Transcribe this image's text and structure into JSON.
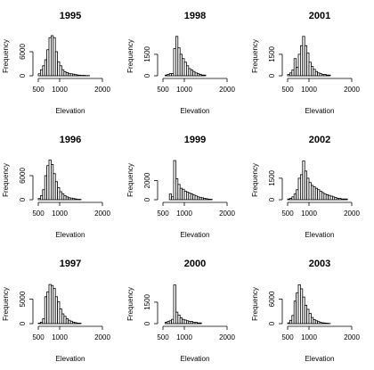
{
  "chart_data": [
    {
      "type": "histogram",
      "title": "1995",
      "xlabel": "Elevation",
      "ylabel": "Frequency",
      "xlim": [
        500,
        2000
      ],
      "ylim": [
        0,
        10000
      ],
      "x_ticks": [
        "500",
        "1000",
        "2000"
      ],
      "y_ticks": [
        "0",
        "6000"
      ],
      "y_tick_values": [
        0,
        6000
      ],
      "bin_start": 500,
      "bin_width": 50,
      "values": [
        500,
        1500,
        2500,
        4000,
        6500,
        9500,
        10000,
        9500,
        6000,
        3500,
        2500,
        1500,
        1000,
        800,
        600,
        500,
        400,
        300,
        200,
        150,
        100,
        100,
        50,
        50
      ]
    },
    {
      "type": "histogram",
      "title": "1998",
      "xlabel": "Elevation",
      "ylabel": "Frequency",
      "xlim": [
        500,
        2000
      ],
      "ylim": [
        0,
        2800
      ],
      "x_ticks": [
        "500",
        "1000",
        "2000"
      ],
      "y_ticks": [
        "0",
        "1500"
      ],
      "y_tick_values": [
        0,
        1500
      ],
      "bin_start": 500,
      "bin_width": 50,
      "values": [
        0,
        50,
        100,
        150,
        150,
        1900,
        2750,
        1950,
        1500,
        1200,
        950,
        700,
        500,
        400,
        300,
        200,
        150,
        100,
        50,
        50
      ]
    },
    {
      "type": "histogram",
      "title": "2001",
      "xlabel": "Elevation",
      "ylabel": "Frequency",
      "xlim": [
        500,
        2000
      ],
      "ylim": [
        0,
        2800
      ],
      "x_ticks": [
        "500",
        "1000",
        "2000"
      ],
      "y_ticks": [
        "0",
        "1500"
      ],
      "y_tick_values": [
        0,
        1500
      ],
      "bin_start": 500,
      "bin_width": 50,
      "values": [
        100,
        200,
        400,
        1200,
        600,
        1500,
        2100,
        2750,
        2100,
        1600,
        950,
        650,
        450,
        300,
        200,
        150,
        100,
        100,
        50,
        50
      ]
    },
    {
      "type": "histogram",
      "title": "1996",
      "xlabel": "Elevation",
      "ylabel": "Frequency",
      "xlim": [
        500,
        2000
      ],
      "ylim": [
        0,
        10000
      ],
      "x_ticks": [
        "500",
        "1000",
        "2000"
      ],
      "y_ticks": [
        "0",
        "6000"
      ],
      "y_tick_values": [
        0,
        6000
      ],
      "bin_start": 500,
      "bin_width": 50,
      "values": [
        300,
        1000,
        2500,
        6000,
        8500,
        9900,
        8800,
        6500,
        4500,
        3000,
        2000,
        1500,
        1000,
        700,
        500,
        400,
        300,
        200,
        100,
        100
      ]
    },
    {
      "type": "histogram",
      "title": "1999",
      "xlabel": "Elevation",
      "ylabel": "Frequency",
      "xlim": [
        500,
        2000
      ],
      "ylim": [
        0,
        4200
      ],
      "x_ticks": [
        "500",
        "1000",
        "2000"
      ],
      "y_ticks": [
        "0",
        "2000"
      ],
      "y_tick_values": [
        0,
        2000
      ],
      "bin_start": 500,
      "bin_width": 50,
      "values": [
        0,
        0,
        0,
        600,
        300,
        4100,
        2200,
        1600,
        1200,
        1100,
        900,
        800,
        700,
        600,
        500,
        400,
        300,
        250,
        200,
        150,
        100,
        50,
        50
      ]
    },
    {
      "type": "histogram",
      "title": "2002",
      "xlabel": "Elevation",
      "ylabel": "Frequency",
      "xlim": [
        500,
        2000
      ],
      "ylim": [
        0,
        2800
      ],
      "x_ticks": [
        "500",
        "1000",
        "2000"
      ],
      "y_ticks": [
        "0",
        "1500"
      ],
      "y_tick_values": [
        0,
        1500
      ],
      "bin_start": 500,
      "bin_width": 50,
      "values": [
        50,
        100,
        200,
        400,
        700,
        1500,
        1750,
        2700,
        2000,
        1500,
        1200,
        1000,
        900,
        800,
        700,
        600,
        500,
        400,
        350,
        300,
        250,
        200,
        150,
        100,
        100,
        50,
        50,
        50
      ]
    },
    {
      "type": "histogram",
      "title": "1997",
      "xlabel": "Elevation",
      "ylabel": "Frequency",
      "xlim": [
        500,
        2000
      ],
      "ylim": [
        0,
        8200
      ],
      "x_ticks": [
        "500",
        "1000",
        "2000"
      ],
      "y_ticks": [
        "0",
        "5000"
      ],
      "y_tick_values": [
        0,
        5000
      ],
      "bin_start": 500,
      "bin_width": 50,
      "values": [
        100,
        300,
        1000,
        5500,
        6500,
        8000,
        7800,
        7200,
        5500,
        4500,
        3000,
        2000,
        1500,
        1000,
        700,
        500,
        300,
        200,
        100,
        100
      ]
    },
    {
      "type": "histogram",
      "title": "2000",
      "xlabel": "Elevation",
      "ylabel": "Frequency",
      "xlim": [
        500,
        2000
      ],
      "ylim": [
        0,
        2800
      ],
      "x_ticks": [
        "500",
        "1000",
        "2000"
      ],
      "y_ticks": [
        "0",
        "1500"
      ],
      "y_tick_values": [
        0,
        1500
      ],
      "bin_start": 500,
      "bin_width": 50,
      "values": [
        0,
        100,
        150,
        200,
        300,
        2700,
        800,
        600,
        400,
        300,
        250,
        200,
        150,
        150,
        100,
        100,
        50,
        50
      ]
    },
    {
      "type": "histogram",
      "title": "2003",
      "xlabel": "Elevation",
      "ylabel": "Frequency",
      "xlim": [
        500,
        2000
      ],
      "ylim": [
        0,
        9800
      ],
      "x_ticks": [
        "500",
        "1000",
        "2000"
      ],
      "y_ticks": [
        "0",
        "6000"
      ],
      "y_tick_values": [
        0,
        6000
      ],
      "bin_start": 500,
      "bin_width": 50,
      "values": [
        200,
        800,
        2000,
        5500,
        7500,
        9500,
        8500,
        6500,
        4500,
        3500,
        2500,
        1500,
        1000,
        700,
        500,
        300,
        200,
        150,
        100,
        50
      ]
    }
  ]
}
